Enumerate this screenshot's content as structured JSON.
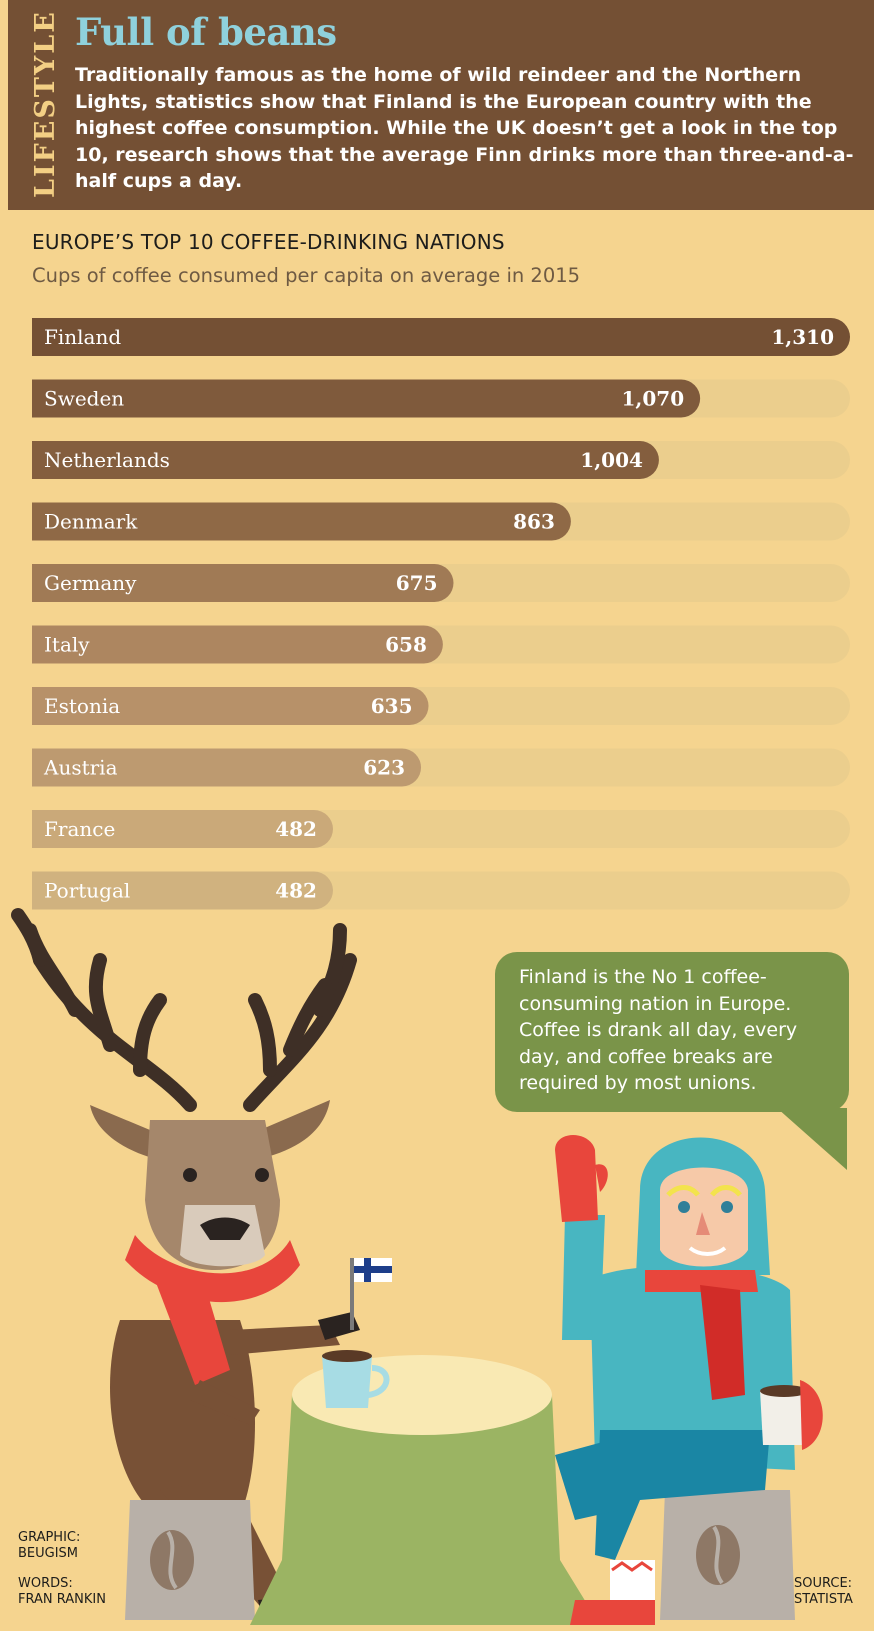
{
  "header": {
    "section_tag": "LIFESTYLE",
    "title": "Full of beans",
    "intro": "Traditionally famous as the home of wild reindeer and the Northern Lights, statistics show that Finland is the European country with the highest coffee consumption. While the UK doesn’t get a look in the top 10, research shows that the average Finn drinks more than three-and-a-half cups a day."
  },
  "chart_data": {
    "type": "bar",
    "orientation": "horizontal",
    "title": "EUROPE’S TOP 10 COFFEE-DRINKING NATIONS",
    "subtitle": "Cups of coffee consumed per capita on average in 2015",
    "xlabel": "",
    "ylabel": "",
    "xlim": [
      0,
      1310
    ],
    "grid": false,
    "legend": "none",
    "categories": [
      "Finland",
      "Sweden",
      "Netherlands",
      "Denmark",
      "Germany",
      "Italy",
      "Estonia",
      "Austria",
      "France",
      "Portugal"
    ],
    "values": [
      1310,
      1070,
      1004,
      863,
      675,
      658,
      635,
      623,
      482,
      482
    ],
    "value_labels": [
      "1,310",
      "1,070",
      "1,004",
      "863",
      "675",
      "658",
      "635",
      "623",
      "482",
      "482"
    ],
    "colors": [
      "#745034",
      "#7f5a3c",
      "#845e3e",
      "#8f6946",
      "#a07a55",
      "#ad8660",
      "#b79169",
      "#bd9a70",
      "#caa979",
      "#d0b27f"
    ],
    "track_color": "#ebce8d"
  },
  "speech_bubble": {
    "text": "Finland is the No 1 coffee-consuming nation in Europe. Coffee is drank all day, every day, and coffee breaks are required by most unions."
  },
  "credits": {
    "graphic_label": "GRAPHIC:",
    "graphic_name": "BEUGISM",
    "words_label": "WORDS:",
    "words_name": "FRAN RANKIN",
    "source_label": "SOURCE:",
    "source_name": "STATISTA"
  },
  "illustration": {
    "characters": [
      "reindeer-icon",
      "person-icon"
    ],
    "props": [
      "finland-flag-icon",
      "coffee-mug-icon",
      "tree-stump-table-icon",
      "coffee-bean-icon"
    ],
    "colors": {
      "scarf": "#e8463c",
      "coat": "#48b6c1",
      "stump": "#9bb463",
      "mug": "#a7dce4"
    }
  }
}
